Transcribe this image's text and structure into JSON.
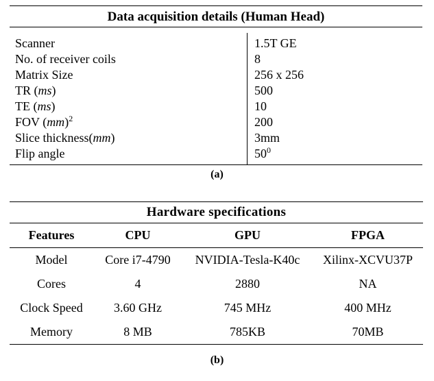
{
  "table_a": {
    "title": "Data acquisition details (Human Head)",
    "rows": [
      {
        "label": "Scanner",
        "value": "1.5T GE"
      },
      {
        "label": "No. of receiver coils",
        "value": "8"
      },
      {
        "label": "Matrix Size",
        "value": "256 x 256"
      },
      {
        "label": "TR",
        "label_unit": "ms",
        "value": "500"
      },
      {
        "label": "TE",
        "label_unit": "ms",
        "value": "10"
      },
      {
        "label": "FOV",
        "label_unit": "mm",
        "label_exp": "2",
        "value": "200"
      },
      {
        "label": "Slice thickness",
        "label_unit": "mm",
        "value": "3mm"
      },
      {
        "label": "Flip angle",
        "value": "50",
        "value_exp": "0"
      }
    ],
    "caption": "(a)"
  },
  "table_b": {
    "title": "Hardware specifications",
    "headers": [
      "Features",
      "CPU",
      "GPU",
      "FPGA"
    ],
    "rows": [
      [
        "Model",
        "Core i7-4790",
        "NVIDIA-Tesla-K40c",
        "Xilinx-XCVU37P"
      ],
      [
        "Cores",
        "4",
        "2880",
        "NA"
      ],
      [
        "Clock Speed",
        "3.60 GHz",
        "745 MHz",
        "400 MHz"
      ],
      [
        "Memory",
        "8 MB",
        "785KB",
        "70MB"
      ]
    ],
    "caption": "(b)"
  }
}
